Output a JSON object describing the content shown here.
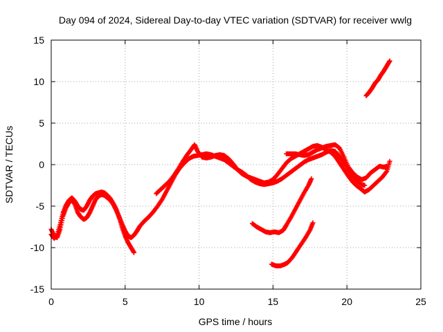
{
  "chart_data": {
    "type": "scatter",
    "title": "Day 094 of 2024, Sidereal Day-to-day VTEC variation (SDTVAR) for receiver wwlg",
    "xlabel": "GPS time / hours",
    "ylabel": "SDTVAR / TECUs",
    "xlim": [
      0,
      25
    ],
    "ylim": [
      -15,
      15
    ],
    "xticks": [
      0,
      5,
      10,
      15,
      20,
      25
    ],
    "yticks": [
      -15,
      -10,
      -5,
      0,
      5,
      10,
      15
    ],
    "grid": true,
    "marker": "plus",
    "color": "#ff0000",
    "series": [
      {
        "points": [
          [
            0.0,
            -7.8
          ],
          [
            0.2,
            -8.6
          ],
          [
            0.4,
            -8.8
          ],
          [
            0.6,
            -7.8
          ],
          [
            0.8,
            -6.2
          ],
          [
            1.0,
            -5.2
          ],
          [
            1.2,
            -4.6
          ],
          [
            1.4,
            -4.2
          ],
          [
            1.6,
            -4.8
          ],
          [
            1.8,
            -5.8
          ],
          [
            2.0,
            -6.3
          ],
          [
            2.2,
            -6.6
          ],
          [
            2.4,
            -6.4
          ],
          [
            2.6,
            -5.8
          ],
          [
            2.8,
            -5.0
          ],
          [
            3.0,
            -4.2
          ],
          [
            3.2,
            -3.8
          ],
          [
            3.4,
            -3.6
          ],
          [
            3.6,
            -3.7
          ],
          [
            3.8,
            -4.0
          ],
          [
            4.0,
            -4.3
          ],
          [
            4.2,
            -4.8
          ],
          [
            4.4,
            -5.5
          ],
          [
            4.6,
            -6.3
          ],
          [
            4.8,
            -7.2
          ],
          [
            5.0,
            -8.0
          ],
          [
            5.2,
            -8.6
          ],
          [
            5.4,
            -8.8
          ],
          [
            5.6,
            -8.5
          ],
          [
            5.8,
            -8.0
          ],
          [
            6.0,
            -7.4
          ],
          [
            6.3,
            -6.8
          ],
          [
            6.6,
            -6.3
          ],
          [
            6.9,
            -5.7
          ],
          [
            7.2,
            -5.0
          ],
          [
            7.5,
            -4.2
          ],
          [
            7.8,
            -3.2
          ],
          [
            8.1,
            -2.2
          ],
          [
            8.4,
            -1.2
          ],
          [
            8.7,
            -0.4
          ],
          [
            9.0,
            0.2
          ],
          [
            9.3,
            0.7
          ],
          [
            9.6,
            1.0
          ],
          [
            9.9,
            1.1
          ],
          [
            10.2,
            1.2
          ],
          [
            10.5,
            1.3
          ],
          [
            10.8,
            1.2
          ],
          [
            11.1,
            1.0
          ],
          [
            11.4,
            0.8
          ],
          [
            11.7,
            0.6
          ],
          [
            12.0,
            0.2
          ],
          [
            12.3,
            -0.2
          ],
          [
            12.6,
            -0.6
          ],
          [
            12.9,
            -0.9
          ],
          [
            13.2,
            -1.3
          ],
          [
            13.5,
            -1.8
          ],
          [
            13.8,
            -2.1
          ],
          [
            14.1,
            -2.3
          ],
          [
            14.4,
            -2.4
          ],
          [
            14.7,
            -2.3
          ],
          [
            15.0,
            -2.2
          ],
          [
            15.3,
            -2.0
          ],
          [
            15.6,
            -1.7
          ],
          [
            15.9,
            -1.3
          ],
          [
            16.2,
            -0.9
          ],
          [
            16.5,
            -0.5
          ],
          [
            16.8,
            -0.1
          ],
          [
            17.1,
            0.3
          ],
          [
            17.4,
            0.6
          ],
          [
            17.7,
            0.8
          ],
          [
            18.0,
            1.0
          ],
          [
            18.3,
            1.2
          ],
          [
            18.6,
            1.5
          ],
          [
            18.9,
            1.7
          ],
          [
            19.2,
            1.6
          ],
          [
            19.5,
            1.0
          ],
          [
            19.8,
            0.2
          ],
          [
            20.1,
            -0.6
          ],
          [
            20.4,
            -1.4
          ],
          [
            20.7,
            -2.0
          ],
          [
            21.0,
            -2.4
          ],
          [
            21.2,
            -2.5
          ]
        ]
      },
      {
        "points": [
          [
            0.0,
            -8.4
          ],
          [
            0.2,
            -8.9
          ],
          [
            0.4,
            -8.5
          ],
          [
            0.6,
            -7.2
          ],
          [
            0.8,
            -5.8
          ],
          [
            1.0,
            -4.9
          ],
          [
            1.2,
            -4.3
          ],
          [
            1.4,
            -4.0
          ],
          [
            1.6,
            -4.4
          ],
          [
            1.8,
            -5.0
          ],
          [
            2.0,
            -5.4
          ],
          [
            2.2,
            -5.5
          ],
          [
            2.4,
            -5.0
          ],
          [
            2.6,
            -4.3
          ],
          [
            2.8,
            -3.8
          ],
          [
            3.0,
            -3.5
          ],
          [
            3.2,
            -3.4
          ],
          [
            3.4,
            -3.3
          ],
          [
            3.6,
            -3.4
          ],
          [
            3.8,
            -3.7
          ],
          [
            4.0,
            -4.1
          ],
          [
            4.2,
            -4.7
          ],
          [
            4.4,
            -5.4
          ],
          [
            4.6,
            -6.4
          ],
          [
            4.8,
            -7.6
          ],
          [
            5.0,
            -8.6
          ],
          [
            5.2,
            -9.4
          ],
          [
            5.4,
            -10.0
          ],
          [
            5.6,
            -10.6
          ]
        ]
      },
      {
        "points": [
          [
            7.1,
            -3.5
          ],
          [
            7.4,
            -3.0
          ],
          [
            7.7,
            -2.5
          ],
          [
            8.0,
            -2.0
          ],
          [
            8.3,
            -1.3
          ],
          [
            8.6,
            -0.5
          ],
          [
            8.9,
            0.4
          ],
          [
            9.2,
            1.2
          ],
          [
            9.5,
            1.9
          ],
          [
            9.7,
            2.4
          ],
          [
            9.9,
            1.6
          ],
          [
            10.2,
            0.9
          ],
          [
            10.5,
            0.8
          ],
          [
            10.8,
            0.9
          ],
          [
            11.1,
            1.1
          ],
          [
            11.4,
            1.2
          ],
          [
            11.7,
            1.1
          ],
          [
            12.0,
            0.7
          ],
          [
            12.3,
            0.1
          ],
          [
            12.6,
            -0.6
          ],
          [
            12.9,
            -1.1
          ],
          [
            13.2,
            -1.4
          ],
          [
            13.5,
            -1.6
          ],
          [
            13.8,
            -1.8
          ],
          [
            14.1,
            -2.0
          ],
          [
            14.4,
            -2.2
          ],
          [
            14.7,
            -2.1
          ],
          [
            15.0,
            -1.8
          ],
          [
            15.3,
            -1.2
          ],
          [
            15.6,
            -0.5
          ],
          [
            15.9,
            0.2
          ],
          [
            16.2,
            0.7
          ],
          [
            16.5,
            1.0
          ],
          [
            16.8,
            1.3
          ],
          [
            17.1,
            1.6
          ],
          [
            17.4,
            1.9
          ],
          [
            17.7,
            2.2
          ],
          [
            18.0,
            2.3
          ],
          [
            18.3,
            2.1
          ],
          [
            18.6,
            1.8
          ],
          [
            18.9,
            1.5
          ],
          [
            19.2,
            1.0
          ],
          [
            19.5,
            0.2
          ],
          [
            19.8,
            -0.6
          ],
          [
            20.1,
            -1.4
          ],
          [
            20.4,
            -2.1
          ],
          [
            20.7,
            -2.6
          ],
          [
            21.0,
            -3.0
          ],
          [
            21.2,
            -3.3
          ],
          [
            21.5,
            -3.0
          ],
          [
            21.8,
            -2.5
          ],
          [
            22.1,
            -2.0
          ],
          [
            22.4,
            -1.5
          ],
          [
            22.7,
            -0.8
          ],
          [
            22.9,
            0.4
          ]
        ]
      },
      {
        "points": [
          [
            15.9,
            1.3
          ],
          [
            16.2,
            1.3
          ],
          [
            16.5,
            1.3
          ],
          [
            16.8,
            1.2
          ],
          [
            17.1,
            1.1
          ],
          [
            17.4,
            1.2
          ],
          [
            17.7,
            1.5
          ],
          [
            18.0,
            1.8
          ],
          [
            18.3,
            2.0
          ],
          [
            18.6,
            2.2
          ],
          [
            18.9,
            2.3
          ],
          [
            19.2,
            2.4
          ],
          [
            19.5,
            2.0
          ],
          [
            19.8,
            0.9
          ],
          [
            20.1,
            -0.3
          ],
          [
            20.4,
            -1.0
          ],
          [
            20.7,
            -1.5
          ],
          [
            21.0,
            -1.8
          ],
          [
            21.3,
            -1.6
          ],
          [
            21.6,
            -1.0
          ],
          [
            21.9,
            -0.6
          ],
          [
            22.2,
            -0.2
          ],
          [
            22.5,
            -0.3
          ],
          [
            22.7,
            -0.2
          ]
        ]
      },
      {
        "points": [
          [
            13.6,
            -7.1
          ],
          [
            13.9,
            -7.5
          ],
          [
            14.2,
            -7.8
          ],
          [
            14.5,
            -8.1
          ],
          [
            14.8,
            -8.2
          ],
          [
            15.1,
            -8.1
          ],
          [
            15.4,
            -8.2
          ],
          [
            15.7,
            -7.9
          ],
          [
            15.9,
            -7.3
          ],
          [
            16.2,
            -6.4
          ],
          [
            16.5,
            -5.4
          ],
          [
            16.8,
            -4.4
          ],
          [
            17.1,
            -3.4
          ],
          [
            17.4,
            -2.5
          ],
          [
            17.6,
            -1.7
          ]
        ]
      },
      {
        "points": [
          [
            14.9,
            -12.0
          ],
          [
            15.2,
            -12.2
          ],
          [
            15.5,
            -12.2
          ],
          [
            15.8,
            -12.0
          ],
          [
            16.0,
            -11.8
          ],
          [
            16.3,
            -11.2
          ],
          [
            16.6,
            -10.4
          ],
          [
            16.9,
            -9.6
          ],
          [
            17.2,
            -8.8
          ],
          [
            17.5,
            -7.9
          ],
          [
            17.7,
            -7.0
          ]
        ]
      },
      {
        "points": [
          [
            21.3,
            8.3
          ],
          [
            21.5,
            8.7
          ],
          [
            21.7,
            9.2
          ],
          [
            21.9,
            9.8
          ],
          [
            22.1,
            10.2
          ],
          [
            22.3,
            10.8
          ],
          [
            22.5,
            11.3
          ],
          [
            22.7,
            11.9
          ],
          [
            22.9,
            12.5
          ]
        ]
      }
    ]
  }
}
